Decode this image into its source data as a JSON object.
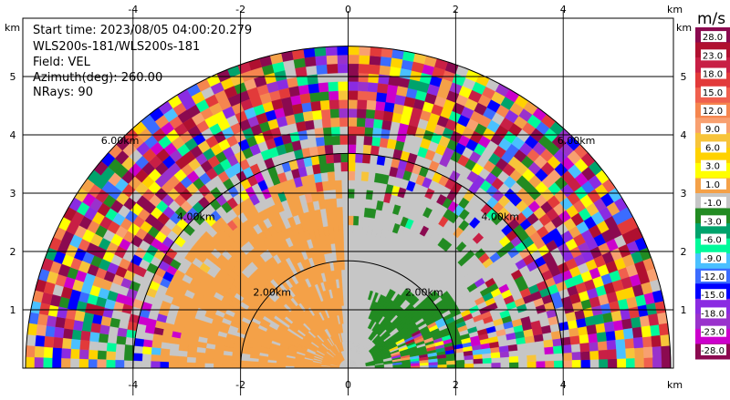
{
  "chart_data": {
    "type": "heatmap",
    "info": {
      "start_time": "Start time: 2023/08/05 04:00:20.279",
      "instrument": "WLS200s-181/WLS200s-181",
      "field": "Field: VEL",
      "azimuth": "Azimuth(deg): 260.00",
      "nrays": "NRays: 90"
    },
    "x_axis": {
      "unit": "km",
      "ticks": [
        -4,
        -2,
        0,
        2,
        4
      ],
      "range": [
        -6.05,
        6.05
      ]
    },
    "y_axis": {
      "unit": "km",
      "ticks": [
        1,
        2,
        3,
        4,
        5
      ],
      "range": [
        0,
        6.0
      ]
    },
    "range_rings": [
      {
        "radius": 2,
        "label": "2.00km"
      },
      {
        "radius": 4,
        "label": "4.00km"
      },
      {
        "radius": 6,
        "label": "6.00km"
      }
    ],
    "max_range_km": 6.0,
    "grid": true,
    "colorbar": {
      "unit": "m/s",
      "colors": [
        "#8b0a50",
        "#b01030",
        "#c81f45",
        "#e23a3a",
        "#f0604e",
        "#f5864f",
        "#f8a070",
        "#f7c43a",
        "#ffd200",
        "#ffff00",
        "#f4a148",
        "#c6c6c6",
        "#228b22",
        "#00a36c",
        "#00fa9a",
        "#4ac0ff",
        "#3b6cff",
        "#0000ff",
        "#8a2be2",
        "#9932cc",
        "#cc00cc",
        "#8b0a50"
      ],
      "tick_labels": [
        "28.0",
        "23.0",
        "18.0",
        "15.0",
        "12.0",
        "9.0",
        "6.0",
        "3.0",
        "1.0",
        "-1.0",
        "-3.0",
        "-6.0",
        "-9.0",
        "-12.0",
        "-15.0",
        "-18.0",
        "-23.0",
        "-28.0"
      ]
    }
  }
}
